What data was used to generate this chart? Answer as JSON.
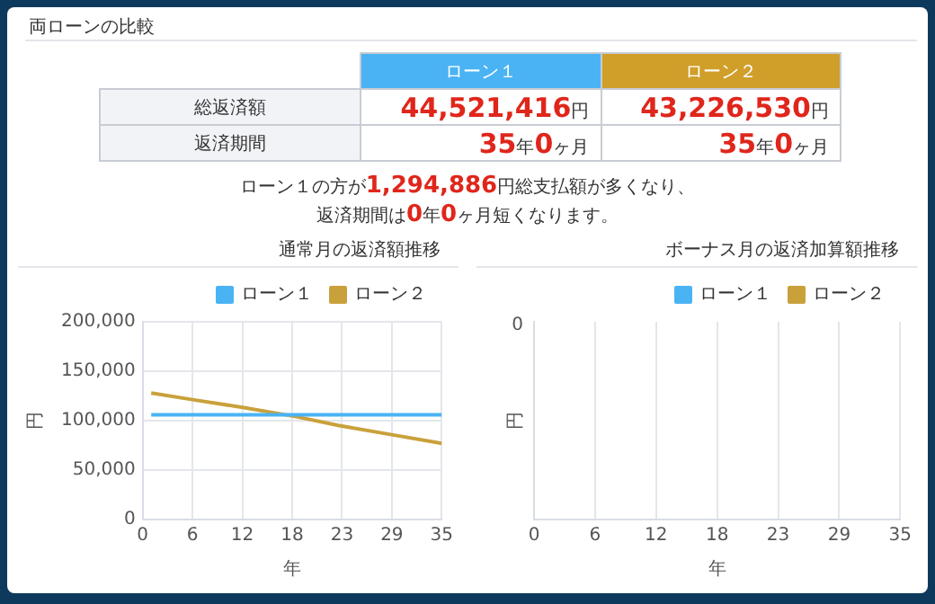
{
  "chart_data": [
    {
      "type": "other",
      "title": "両ローンの比較",
      "categories": [
        "ローン１",
        "ローン２"
      ],
      "colors": [
        "#4ab3f4",
        "#d09f2a"
      ],
      "y_categories": [
        "総返済額",
        "返済期間"
      ],
      "cell_labels": [
        [
          "44,521,416円",
          "43,226,530円"
        ],
        [
          "35年0ヶ月",
          "35年0ヶ月"
        ]
      ],
      "annotations": [
        "ローン１の方が1,294,886円総支払額が多くなり、",
        "返済期間は0年0ヶ月短くなります。"
      ]
    },
    {
      "type": "line",
      "title": "通常月の返済額推移",
      "xlabel": "年",
      "ylabel": "円",
      "legend": "top right",
      "grid": true,
      "marker": "none",
      "xlim": [
        0,
        35
      ],
      "xticks": [
        0,
        {
          "value": 5.833,
          "label": "6"
        },
        {
          "value": 11.667,
          "label": "12"
        },
        {
          "value": 17.5,
          "label": "18"
        },
        {
          "value": 23.333,
          "label": "23"
        },
        {
          "value": 29.167,
          "label": "29"
        },
        35
      ],
      "ylim": [
        0,
        200000
      ],
      "yticks": [
        0,
        {
          "value": 50000,
          "label": "50,000"
        },
        {
          "value": 100000,
          "label": "100,000"
        },
        {
          "value": 150000,
          "label": "150,000"
        },
        {
          "value": 200000,
          "label": "200,000"
        }
      ],
      "series": [
        {
          "name": "ローン１",
          "color": "#4ab3f4",
          "x": [
            1,
            35
          ],
          "values": [
            106000,
            106000
          ]
        },
        {
          "name": "ローン２",
          "color": "#c9a13b",
          "x": [
            1,
            6,
            12,
            18,
            23,
            29,
            35
          ],
          "values": [
            128000,
            121000,
            113000,
            104000,
            95000,
            86000,
            77000
          ]
        }
      ]
    },
    {
      "type": "other",
      "title": "ボーナス月の返済加算額推移",
      "xlabel": "年",
      "ylabel": "円",
      "legend": "top right",
      "categories": [
        "0",
        "6",
        "12",
        "18",
        "23",
        "29",
        "35"
      ],
      "annotations": [
        "0"
      ],
      "series": [
        {
          "name": "ローン１",
          "color": "#4ab3f4",
          "values": [
            null,
            null,
            null,
            null,
            null,
            null,
            null
          ]
        },
        {
          "name": "ローン２",
          "color": "#c9a13b",
          "values": [
            null,
            null,
            null,
            null,
            null,
            null,
            null
          ]
        }
      ]
    }
  ]
}
